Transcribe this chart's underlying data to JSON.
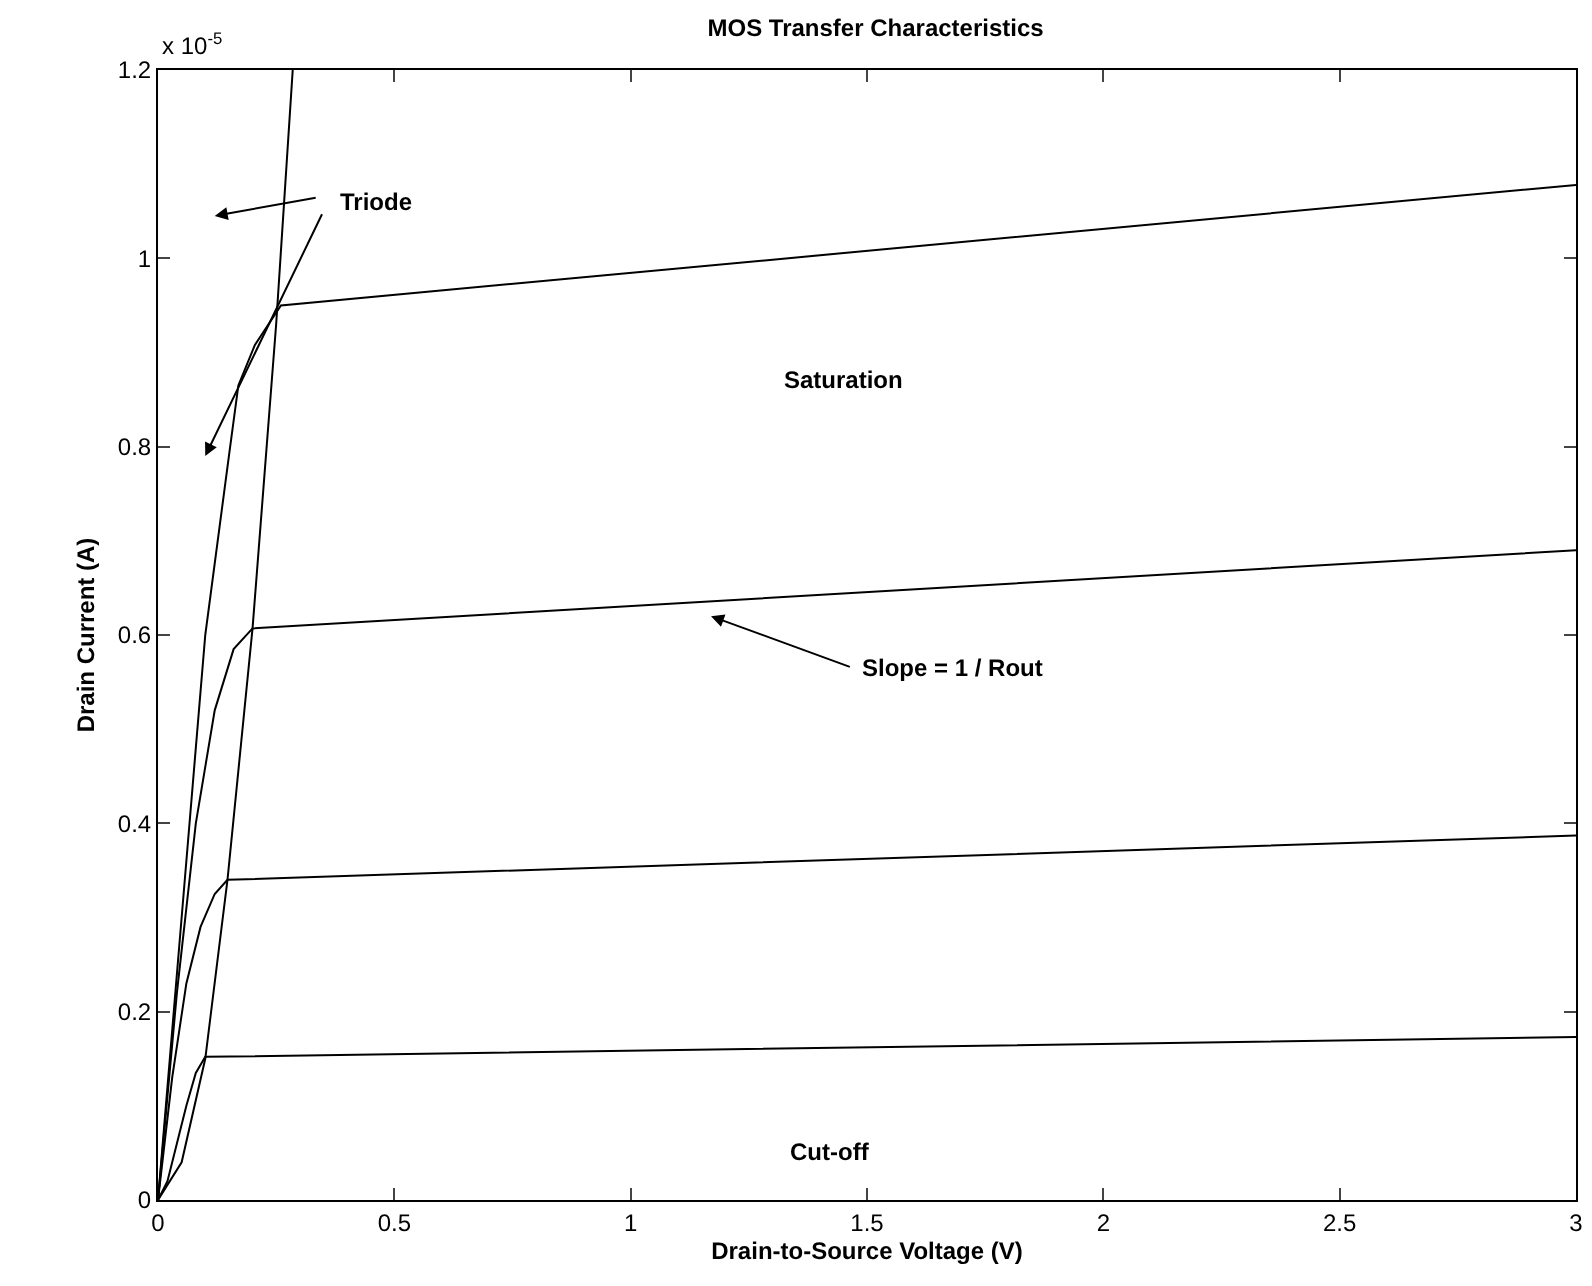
{
  "chart_data": {
    "type": "line",
    "title": "MOS Transfer Characteristics",
    "xlabel": "Drain-to-Source Voltage (V)",
    "ylabel": "Drain Current (A)",
    "annotations": [
      "x 10$^{-5}$",
      "Triode",
      "Saturation",
      "Slope = 1 / Rout",
      "Cut-off"
    ],
    "xlim": [
      0,
      3
    ],
    "xticks": [
      0,
      0.5,
      1,
      1.5,
      2,
      2.5,
      3
    ],
    "ylim": [
      0,
      1.2
    ],
    "yticks": [
      0,
      0.2,
      0.4,
      0.6,
      0.8,
      1,
      1.2
    ],
    "grid": false,
    "marker": "none",
    "line_style": "solid",
    "series": [
      {
        "color": "#000000",
        "x": [
          0,
          0.02,
          0.04,
          0.06,
          0.08,
          0.1,
          3
        ],
        "values": [
          0,
          0.02,
          0.06,
          0.1,
          0.135,
          0.152,
          0.173
        ]
      },
      {
        "color": "#000000",
        "x": [
          0,
          0.03,
          0.06,
          0.09,
          0.12,
          0.147,
          3
        ],
        "values": [
          0,
          0.13,
          0.23,
          0.29,
          0.325,
          0.34,
          0.387
        ]
      },
      {
        "color": "#000000",
        "x": [
          0,
          0.04,
          0.08,
          0.12,
          0.16,
          0.2,
          3
        ],
        "values": [
          0,
          0.22,
          0.4,
          0.52,
          0.585,
          0.607,
          0.69
        ]
      },
      {
        "color": "#000000",
        "x": [
          0,
          0.05,
          0.1,
          0.15,
          0.17,
          0.205,
          0.26,
          3
        ],
        "values": [
          0,
          0.3,
          0.6,
          0.79,
          0.865,
          0.908,
          0.95,
          1.078
        ]
      },
      {
        "color": "#000000",
        "x": [
          0,
          0.05,
          0.1,
          0.147,
          0.2,
          0.25,
          0.285
        ],
        "values": [
          0,
          0.04,
          0.15,
          0.34,
          0.607,
          0.93,
          1.2
        ]
      }
    ]
  }
}
